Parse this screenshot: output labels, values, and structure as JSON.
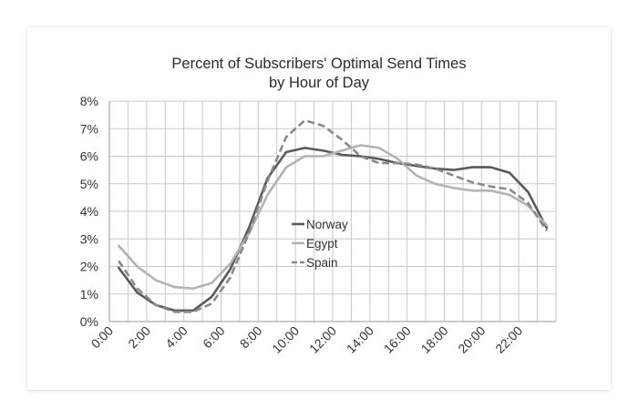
{
  "chart_data": {
    "type": "line",
    "title": [
      "Percent of Subscribers' Optimal Send Times",
      "by Hour of Day"
    ],
    "xlabel": "",
    "ylabel": "",
    "x": [
      0,
      1,
      2,
      3,
      4,
      5,
      6,
      7,
      8,
      9,
      10,
      11,
      12,
      13,
      14,
      15,
      16,
      17,
      18,
      19,
      20,
      21,
      22,
      23
    ],
    "x_tick_labels": [
      "0:00",
      "2:00",
      "4:00",
      "6:00",
      "8:00",
      "10:00",
      "12:00",
      "14:00",
      "16:00",
      "18:00",
      "20:00",
      "22:00"
    ],
    "y_tick_labels": [
      "0%",
      "1%",
      "2%",
      "3%",
      "4%",
      "5%",
      "6%",
      "7%",
      "8%"
    ],
    "ylim": [
      0,
      8
    ],
    "grid": true,
    "legend_position": "center",
    "series": [
      {
        "name": "Norway",
        "style": "solid",
        "color": "#5a5a5a",
        "values": [
          1.95,
          1.05,
          0.6,
          0.4,
          0.4,
          0.9,
          1.9,
          3.4,
          5.2,
          6.15,
          6.3,
          6.2,
          6.05,
          6.0,
          5.9,
          5.75,
          5.65,
          5.55,
          5.5,
          5.6,
          5.6,
          5.4,
          4.7,
          3.4
        ]
      },
      {
        "name": "Egypt",
        "style": "solid",
        "color": "#b3b3b3",
        "values": [
          2.75,
          2.0,
          1.5,
          1.25,
          1.2,
          1.4,
          2.1,
          3.2,
          4.6,
          5.6,
          6.0,
          6.0,
          6.2,
          6.4,
          6.3,
          5.9,
          5.3,
          5.0,
          4.85,
          4.75,
          4.75,
          4.6,
          4.2,
          3.5
        ]
      },
      {
        "name": "Spain",
        "style": "dashed",
        "color": "#8a8a8a",
        "values": [
          2.2,
          1.2,
          0.6,
          0.35,
          0.35,
          0.65,
          1.6,
          3.2,
          5.1,
          6.7,
          7.3,
          7.1,
          6.6,
          6.0,
          5.75,
          5.75,
          5.7,
          5.55,
          5.3,
          5.05,
          4.9,
          4.8,
          4.3,
          3.3
        ]
      }
    ]
  }
}
